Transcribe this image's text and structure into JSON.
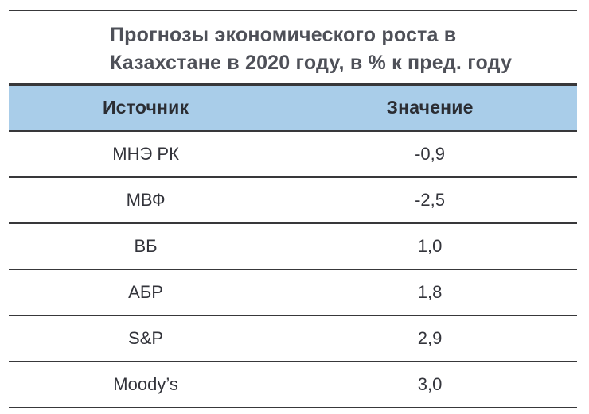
{
  "figure": {
    "title": "Прогнозы экономического роста в Казахстане в 2020 году, в % к пред. году",
    "title_line1": "Прогнозы экономического роста в",
    "title_line2": "Казахстане в 2020 году, в % к пред. году"
  },
  "table": {
    "columns": [
      "Источник",
      "Значение"
    ],
    "rows": [
      {
        "source": "МНЭ РК",
        "value": "-0,9"
      },
      {
        "source": "МВФ",
        "value": "-2,5"
      },
      {
        "source": "ВБ",
        "value": "1,0"
      },
      {
        "source": "АБР",
        "value": "1,8"
      },
      {
        "source": "S&P",
        "value": "2,9"
      },
      {
        "source": "Moody’s",
        "value": "3,0"
      }
    ]
  },
  "colors": {
    "header_background": "#a9cde9",
    "rule_line": "#38383a",
    "title_text": "#4e5058",
    "cell_text": "#33343b"
  },
  "chart_data": {
    "type": "table",
    "title": "Прогнозы экономического роста в Казахстане в 2020 году, в % к пред. году",
    "columns": [
      "Источник",
      "Значение"
    ],
    "categories": [
      "МНЭ РК",
      "МВФ",
      "ВБ",
      "АБР",
      "S&P",
      "Moody’s"
    ],
    "values": [
      -0.9,
      -2.5,
      1.0,
      1.8,
      2.9,
      3.0
    ],
    "values_display": [
      "-0,9",
      "-2,5",
      "1,0",
      "1,8",
      "2,9",
      "3,0"
    ],
    "unit": "% к пред. году"
  }
}
